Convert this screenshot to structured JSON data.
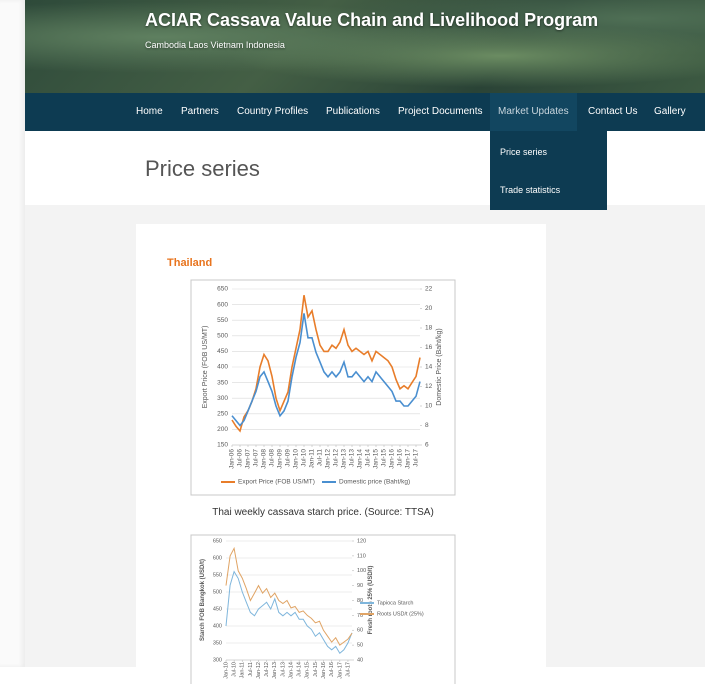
{
  "header": {
    "title": "ACIAR Cassava Value Chain and Livelihood Program",
    "subtitle": "Cambodia Laos Vietnam Indonesia"
  },
  "nav": {
    "items": [
      "Home",
      "Partners",
      "Country Profiles",
      "Publications",
      "Project Documents",
      "Market Updates",
      "Contact Us",
      "Gallery"
    ],
    "dropdown": [
      "Price series",
      "Trade statistics"
    ]
  },
  "page_title": "Price series",
  "section": "Thailand",
  "captions": [
    "Thai weekly cassava starch price. (Source: TTSA)"
  ],
  "chart_data": [
    {
      "type": "line",
      "ylabel": "Export Price (FOB US/MT)",
      "y2label": "Domestic Price (Baht/kg)",
      "x": [
        "Jan-06",
        "Apr-06",
        "Jul-06",
        "Oct-06",
        "Jan-07",
        "Apr-07",
        "Jul-07",
        "Oct-07",
        "Jan-08",
        "Apr-08",
        "Jul-08",
        "Oct-08",
        "Jan-09",
        "Apr-09",
        "Jul-09",
        "Oct-09",
        "Jan-10",
        "Apr-10",
        "Jul-10",
        "Oct-10",
        "Jan-11",
        "Apr-11",
        "Jul-11",
        "Oct-11",
        "Jan-12",
        "Apr-12",
        "Jul-12",
        "Oct-12",
        "Jan-13",
        "Apr-13",
        "Jul-13",
        "Oct-13",
        "Jan-14",
        "Apr-14",
        "Jul-14",
        "Oct-14",
        "Jan-15",
        "Apr-15",
        "Jul-15",
        "Oct-15",
        "Jan-16",
        "Apr-16",
        "Jul-16",
        "Oct-16",
        "Jan-17",
        "Apr-17",
        "Jul-17",
        "Oct-17"
      ],
      "xticks": [
        "Jan-06",
        "Jul-06",
        "Jan-07",
        "Jul-07",
        "Jan-08",
        "Jul-08",
        "Jan-09",
        "Jul-09",
        "Jan-10",
        "Jul-10",
        "Jan-11",
        "Jul-11",
        "Jan-12",
        "Jul-12",
        "Jan-13",
        "Jul-13",
        "Jan-14",
        "Jul-14",
        "Jan-15",
        "Jul-15",
        "Jan-16",
        "Jul-16",
        "Jan-17",
        "Jul-17"
      ],
      "series": [
        {
          "name": "Export Price (FOB US/MT)",
          "color": "#e87d2a",
          "values": [
            230,
            210,
            195,
            240,
            260,
            290,
            330,
            400,
            440,
            420,
            370,
            300,
            260,
            290,
            320,
            400,
            460,
            520,
            630,
            560,
            580,
            520,
            470,
            450,
            450,
            470,
            460,
            480,
            520,
            470,
            450,
            460,
            450,
            440,
            450,
            420,
            450,
            440,
            430,
            420,
            400,
            360,
            330,
            340,
            330,
            350,
            370,
            430
          ]
        },
        {
          "name": "Domestic price (Baht/kg)",
          "color": "#4a8fd0",
          "axis": "y2",
          "values": [
            9.0,
            8.5,
            8.0,
            8.5,
            9.5,
            10.5,
            11.5,
            13.0,
            13.5,
            12.5,
            11.5,
            10.0,
            9.0,
            9.5,
            10.5,
            13.0,
            15.0,
            16.5,
            19.5,
            17.0,
            17.0,
            15.5,
            14.5,
            13.5,
            13.0,
            13.5,
            13.0,
            13.5,
            14.5,
            13.0,
            13.0,
            13.5,
            13.0,
            12.5,
            13.0,
            12.5,
            13.5,
            13.0,
            12.5,
            12.0,
            11.5,
            10.5,
            10.5,
            10.0,
            10.0,
            10.5,
            11.0,
            12.5
          ]
        }
      ],
      "ylim": [
        150,
        650
      ],
      "yticks": [
        150,
        200,
        250,
        300,
        350,
        400,
        450,
        500,
        550,
        600,
        650
      ],
      "y2lim": [
        6,
        22
      ],
      "y2ticks": [
        6,
        8,
        10,
        12,
        14,
        16,
        18,
        20,
        22
      ],
      "grid": true
    },
    {
      "type": "line",
      "ylabel": "Starch FOB Bangkok (USD/t)",
      "y2label": "Fresh roots 25% (USD/t)",
      "x": [
        "Jan-10",
        "Apr-10",
        "Jul-10",
        "Oct-10",
        "Jan-11",
        "Apr-11",
        "Jul-11",
        "Oct-11",
        "Jan-12",
        "Apr-12",
        "Jul-12",
        "Oct-12",
        "Jan-13",
        "Apr-13",
        "Jul-13",
        "Oct-13",
        "Jan-14",
        "Apr-14",
        "Jul-14",
        "Oct-14",
        "Jan-15",
        "Apr-15",
        "Jul-15",
        "Oct-15",
        "Jan-16",
        "Apr-16",
        "Jul-16",
        "Oct-16",
        "Jan-17",
        "Apr-17",
        "Jul-17",
        "Oct-17"
      ],
      "xticks": [
        "Jan-10",
        "Jul-10",
        "Jan-11",
        "Jul-11",
        "Jan-12",
        "Jul-12",
        "Jan-13",
        "Jul-13",
        "Jan-14",
        "Jul-14",
        "Jan-15",
        "Jul-15",
        "Jan-16",
        "Jul-16",
        "Jan-17",
        "Jul-17"
      ],
      "series": [
        {
          "name": "Tapioca Starch",
          "color": "#7fb6dc",
          "values": [
            400,
            520,
            560,
            540,
            500,
            470,
            440,
            430,
            450,
            460,
            470,
            450,
            480,
            440,
            430,
            440,
            430,
            440,
            420,
            420,
            400,
            390,
            370,
            380,
            360,
            340,
            330,
            340,
            320,
            330,
            350,
            380
          ]
        },
        {
          "name": "Roots USD/t (25%)",
          "color": "#e0a465",
          "axis": "y2",
          "values": [
            90,
            110,
            115,
            100,
            95,
            88,
            80,
            85,
            90,
            85,
            88,
            82,
            85,
            80,
            78,
            80,
            75,
            76,
            72,
            73,
            70,
            68,
            65,
            66,
            60,
            56,
            52,
            55,
            50,
            52,
            54,
            58
          ]
        }
      ],
      "ylim": [
        300,
        650
      ],
      "yticks": [
        300,
        350,
        400,
        450,
        500,
        550,
        600,
        650
      ],
      "y2lim": [
        40,
        120
      ],
      "y2ticks": [
        40,
        50,
        60,
        70,
        80,
        90,
        100,
        110,
        120
      ],
      "grid": true
    }
  ]
}
